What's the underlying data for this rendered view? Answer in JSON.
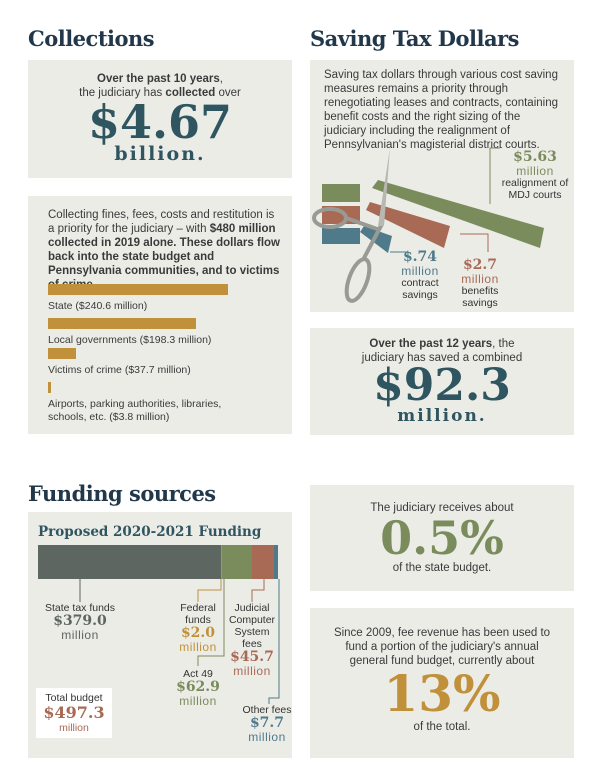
{
  "collections": {
    "title": "Collections",
    "summary": {
      "line1_bold": "Over the past 10 years",
      "line1_rest": ",",
      "line2_pre": "the judiciary has ",
      "line2_bold": "collected",
      "line2_post": " over",
      "amount": "$4.67",
      "unit": "billion."
    },
    "intro_pre": "Collecting fines, fees, costs and restitution is a priority for the judiciary – with ",
    "intro_bold": "$480 million collected in 2019 alone. These dollars flow back into the state budget and Pennsylvania communities, and to victims of crime.",
    "bars": [
      {
        "label": "State  ($240.6 million)",
        "value": 240.6
      },
      {
        "label": "Local governments  ($198.3 million)",
        "value": 198.3
      },
      {
        "label": "Victims of crime  ($37.7 million)",
        "value": 37.7
      },
      {
        "label": "Airports, parking authorities, libraries, schools, etc. ($3.8 million)",
        "value": 3.8
      }
    ],
    "bar_color": "#c0913a"
  },
  "saving": {
    "title": "Saving Tax Dollars",
    "text": "Saving tax dollars through various cost saving measures remains a priority through renegotiating leases and contracts, containing benefit costs and the right sizing of the judiciary including the realignment of Pennsylvanian's magisterial district courts.",
    "items": [
      {
        "amount": "$5.63",
        "unit": "million",
        "label": "realignment of MDJ courts",
        "color": "#7a8c5c"
      },
      {
        "amount": "$.74",
        "unit": "million",
        "label": "contract savings",
        "color": "#4f7a8a"
      },
      {
        "amount": "$2.7",
        "unit": "million",
        "label": "benefits savings",
        "color": "#a86a55"
      }
    ],
    "summary": {
      "bold": "Over the past 12 years",
      "rest": ", the",
      "line2": "judiciary has saved a combined",
      "amount": "$92.3",
      "unit": "million."
    }
  },
  "funding": {
    "title": "Funding sources",
    "chart_title": "Proposed 2020-2021 Funding",
    "sources": [
      {
        "label": "State tax funds",
        "amount": "$379.0",
        "unit": "million",
        "value": 379.0,
        "color": "#5e6662"
      },
      {
        "label": "Federal funds",
        "amount": "$2.0",
        "unit": "million",
        "value": 2.0,
        "color": "#c0913a"
      },
      {
        "label": "Act 49",
        "amount": "$62.9",
        "unit": "million",
        "value": 62.9,
        "color": "#7a8c5c"
      },
      {
        "label": "Judicial Computer System fees",
        "amount": "$45.7",
        "unit": "million",
        "value": 45.7,
        "color": "#a86a55"
      },
      {
        "label": "Other fees",
        "amount": "$7.7",
        "unit": "million",
        "value": 7.7,
        "color": "#4f7a8a"
      }
    ],
    "total": {
      "label": "Total budget",
      "amount": "$497.3",
      "unit": "million"
    }
  },
  "state_budget": {
    "line1": "The judiciary receives about",
    "amount": "0.5%",
    "line2": "of the state budget."
  },
  "fee_revenue": {
    "text": "Since 2009, fee revenue has been used to fund a portion of the judiciary's annual general fund budget, currently about",
    "amount": "13%",
    "line2": "of the total."
  }
}
